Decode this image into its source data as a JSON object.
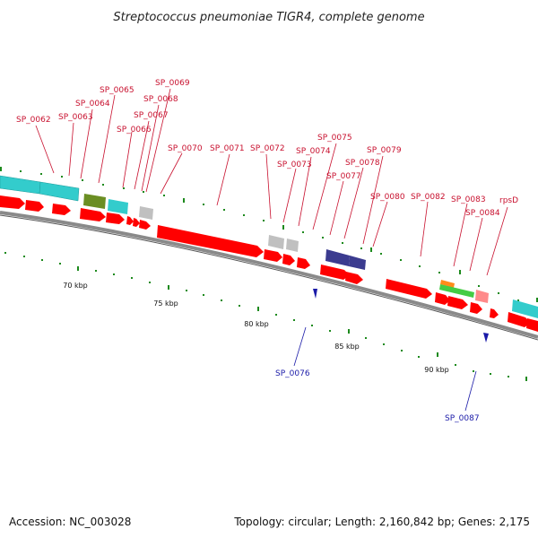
{
  "title": "Streptococcus pneumoniae TIGR4, complete genome",
  "footer": {
    "accession": "Accession: NC_003028",
    "summary": "Topology: circular; Length: 2,160,842 bp; Genes: 2,175"
  },
  "scale_labels": [
    "70 kbp",
    "75 kbp",
    "80 kbp",
    "85 kbp",
    "90 kbp"
  ],
  "gene_labels_forward": [
    "SP_0062",
    "SP_0063",
    "SP_0064",
    "SP_0065",
    "SP_0066",
    "SP_0067",
    "SP_0068",
    "SP_0069",
    "SP_0070",
    "SP_0071",
    "SP_0072",
    "SP_0073",
    "SP_0074",
    "SP_0075",
    "SP_0077",
    "SP_0078",
    "SP_0079",
    "SP_0080",
    "SP_0082",
    "SP_0083",
    "SP_0084",
    "rpsD"
  ],
  "gene_labels_reverse": [
    "SP_0076",
    "SP_0087"
  ],
  "colors": {
    "cds_forward": "#ff0000",
    "cds_reverse": "#1a1aa8",
    "backbone": "#8a8a8a",
    "ticks": "#1d8a1d",
    "label_forward": "#c8102e",
    "label_reverse": "#1a1aa8",
    "feature_cyan": "#33cccc",
    "feature_olive": "#6b8e23",
    "feature_grey": "#c0c0c0",
    "feature_navy": "#3b3b8f",
    "feature_green": "#44cc44",
    "feature_orange": "#ff8c1a",
    "feature_pink": "#ff8a8a"
  }
}
